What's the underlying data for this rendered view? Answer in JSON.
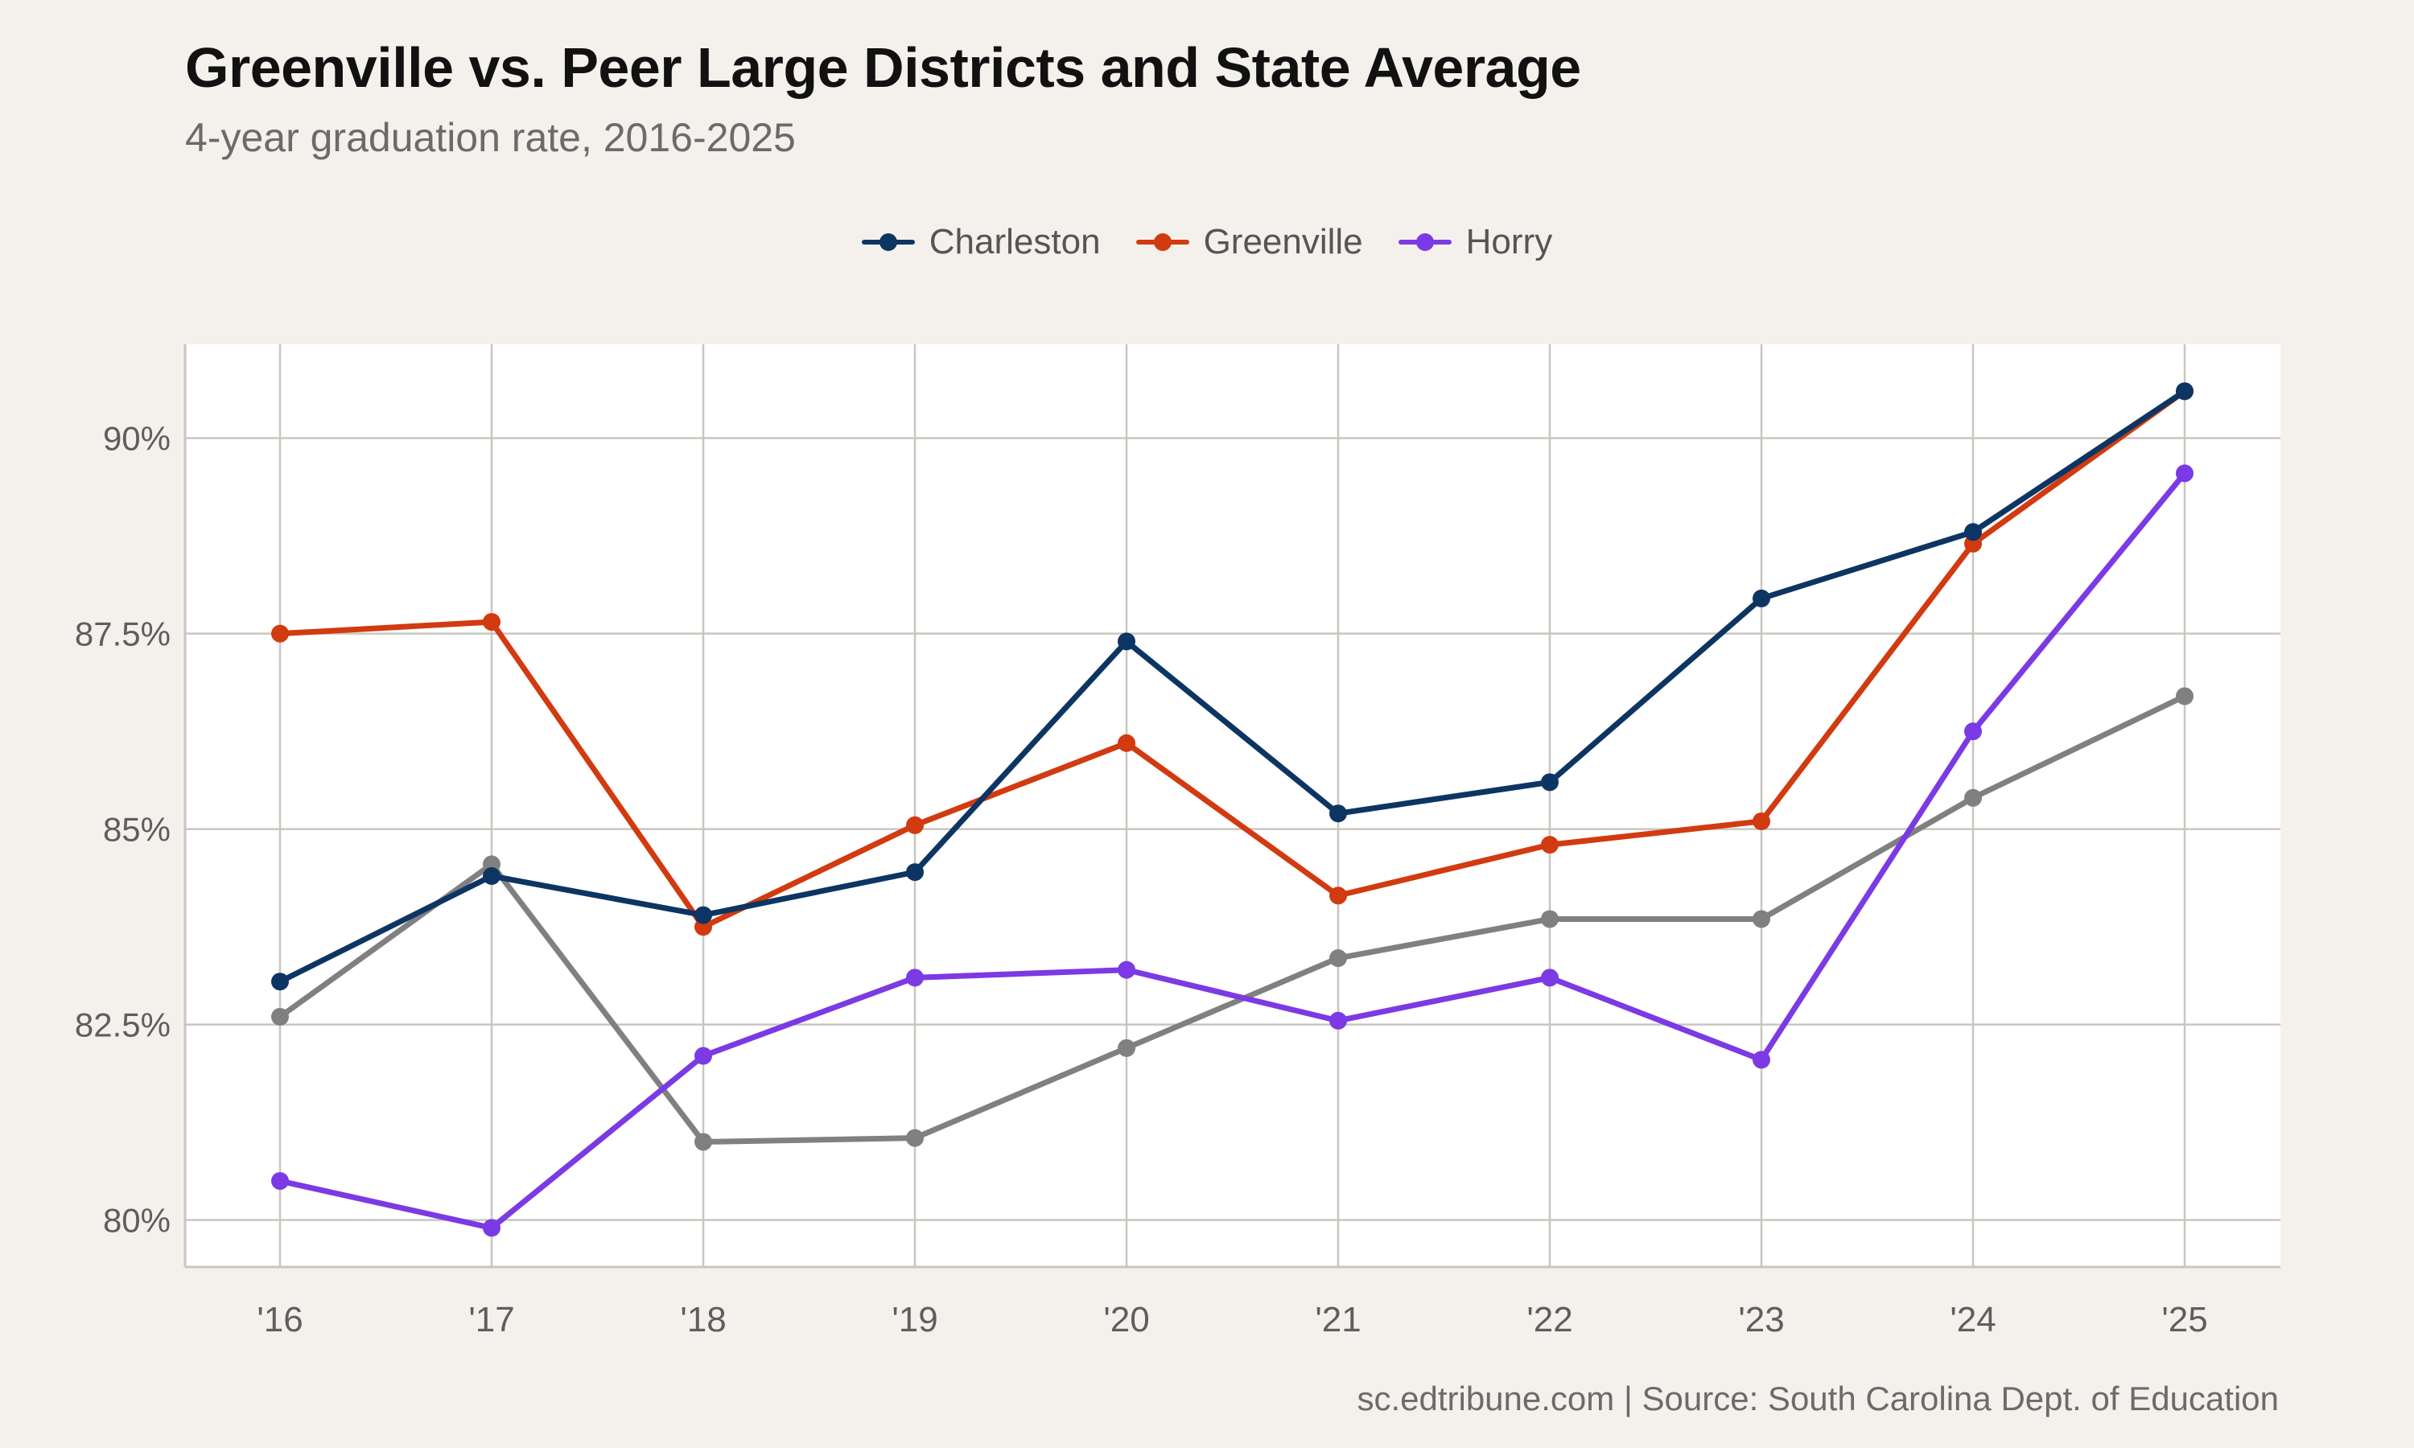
{
  "header": {
    "title": "Greenville vs. Peer Large Districts and State Average",
    "subtitle": "4-year graduation rate, 2016-2025"
  },
  "caption": "sc.edtribune.com | Source: South Carolina Dept. of Education",
  "colors": {
    "background": "#f4f1ec",
    "panel": "#ffffff",
    "grid": "#c9c6bf",
    "charleston": "#0d3563",
    "greenville": "#d23a10",
    "horry": "#7b3ae4",
    "state": "#808080"
  },
  "chart_data": {
    "type": "line",
    "x": [
      "'16",
      "'17",
      "'18",
      "'19",
      "'20",
      "'21",
      "'22",
      "'23",
      "'24",
      "'25"
    ],
    "ylim": [
      79.4,
      91.2
    ],
    "yticks": [
      80,
      82.5,
      85,
      87.5,
      90
    ],
    "ytick_labels": [
      "80%",
      "82.5%",
      "85%",
      "87.5%",
      "90%"
    ],
    "grid": true,
    "legend_position": "top-center",
    "series": [
      {
        "name": "",
        "color_key": "state",
        "in_legend": false,
        "values": [
          82.6,
          84.55,
          81.0,
          81.05,
          82.2,
          83.35,
          83.85,
          83.85,
          85.4,
          86.7
        ]
      },
      {
        "name": "Horry",
        "color_key": "horry",
        "in_legend": true,
        "values": [
          80.5,
          79.9,
          82.1,
          83.1,
          83.2,
          82.55,
          83.1,
          82.05,
          86.25,
          89.55
        ]
      },
      {
        "name": "Greenville",
        "color_key": "greenville",
        "in_legend": true,
        "values": [
          87.5,
          87.65,
          83.75,
          85.05,
          86.1,
          84.15,
          84.8,
          85.1,
          88.65,
          90.6
        ]
      },
      {
        "name": "Charleston",
        "color_key": "charleston",
        "in_legend": true,
        "values": [
          83.05,
          84.4,
          83.9,
          84.45,
          87.4,
          85.2,
          85.6,
          87.95,
          88.8,
          90.6
        ]
      }
    ],
    "legend_order": [
      "Charleston",
      "Greenville",
      "Horry"
    ]
  }
}
